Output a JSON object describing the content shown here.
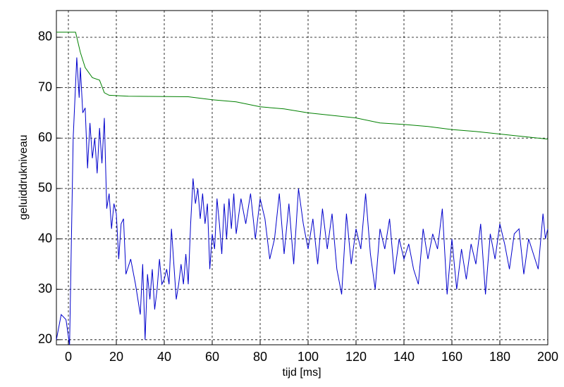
{
  "chart_data": {
    "type": "line",
    "xlabel": "tijd  [ms]",
    "ylabel": "geluiddrukniveau",
    "xlim": [
      -5,
      200
    ],
    "ylim": [
      19,
      85.3
    ],
    "xticks": [
      0,
      20,
      40,
      60,
      80,
      100,
      120,
      140,
      160,
      180,
      200
    ],
    "yticks": [
      20,
      30,
      40,
      50,
      60,
      70,
      80
    ],
    "grid": true,
    "series": [
      {
        "color": "#008000",
        "x": [
          -5,
          3,
          5,
          7,
          10,
          13,
          15,
          17,
          25,
          50,
          60,
          70,
          80,
          90,
          100,
          110,
          120,
          130,
          140,
          150,
          160,
          170,
          180,
          190,
          200
        ],
        "values": [
          81,
          81,
          77,
          74,
          72,
          71.5,
          69,
          68.5,
          68.3,
          68.2,
          67.6,
          67.2,
          66.2,
          65.8,
          65,
          64.5,
          64,
          63,
          62.7,
          62.3,
          61.7,
          61.3,
          60.8,
          60.3,
          59.8
        ]
      },
      {
        "color": "#0000cc",
        "x": [
          -5,
          -3,
          -1,
          0.5,
          2,
          3.5,
          4.5,
          5,
          6,
          7,
          8,
          9,
          10,
          11,
          12,
          13,
          14,
          15,
          16,
          17,
          18,
          19,
          20,
          21,
          22,
          23,
          24,
          26,
          28,
          30,
          31,
          32,
          33,
          34,
          35,
          36,
          37,
          38,
          39,
          40,
          41,
          42,
          43,
          44,
          45,
          46,
          47,
          48,
          49,
          50,
          51,
          52,
          53,
          54,
          55,
          56,
          57,
          58,
          59,
          60,
          61,
          62,
          63,
          64,
          65,
          66,
          67,
          68,
          69,
          70,
          72,
          74,
          76,
          78,
          80,
          82,
          84,
          86,
          88,
          90,
          92,
          94,
          96,
          98,
          100,
          102,
          104,
          106,
          108,
          110,
          112,
          114,
          116,
          118,
          120,
          122,
          124,
          126,
          128,
          130,
          132,
          134,
          136,
          138,
          140,
          142,
          144,
          146,
          148,
          150,
          152,
          154,
          156,
          158,
          160,
          162,
          164,
          166,
          168,
          170,
          172,
          174,
          176,
          178,
          180,
          182,
          184,
          186,
          188,
          190,
          192,
          194,
          196,
          198,
          199,
          200
        ],
        "values": [
          20,
          25,
          24,
          19,
          60,
          76,
          68,
          74,
          65,
          66,
          54,
          63,
          56,
          60,
          53,
          62,
          55,
          64,
          46,
          49,
          42,
          47,
          45,
          36,
          43,
          44,
          33,
          36,
          31,
          25,
          35,
          20,
          33,
          28,
          34,
          26,
          30,
          36,
          31,
          32,
          34,
          31,
          42,
          35,
          28,
          31,
          35,
          31,
          37,
          31,
          43,
          52,
          47,
          50,
          44,
          49,
          43,
          47,
          34,
          41,
          38,
          48,
          43,
          37,
          47,
          40,
          48,
          42,
          49,
          41,
          48,
          43,
          49,
          40,
          48,
          44,
          36,
          40,
          49,
          37,
          47,
          35,
          50,
          43,
          38,
          44,
          35,
          46,
          38,
          45,
          34,
          29,
          45,
          35,
          42,
          38,
          49,
          37,
          30,
          42,
          38,
          44,
          33,
          40,
          36,
          39,
          34,
          31,
          42,
          36,
          41,
          38,
          46,
          29,
          40,
          30,
          38,
          32,
          39,
          35,
          43,
          29,
          41,
          36,
          43,
          39,
          34,
          41,
          42,
          33,
          40,
          37,
          34,
          45,
          40,
          42
        ]
      }
    ]
  }
}
